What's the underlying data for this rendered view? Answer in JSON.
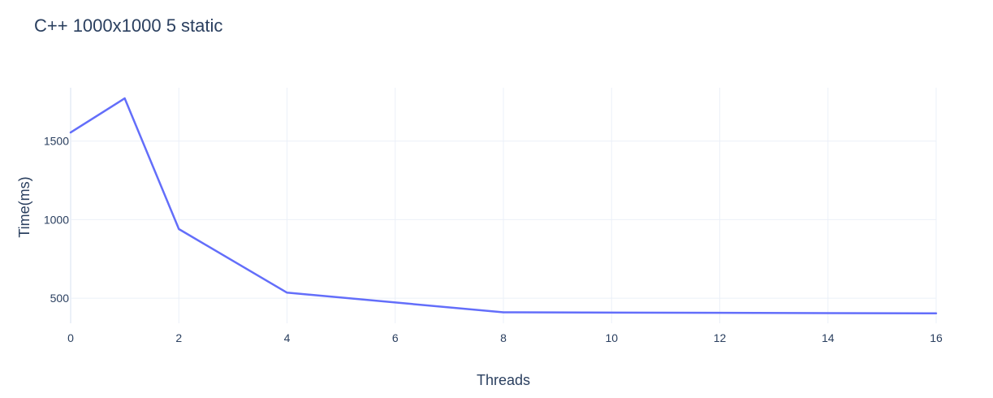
{
  "chart_data": {
    "type": "line",
    "title": "C++ 1000x1000 5 static",
    "xlabel": "Threads",
    "ylabel": "Time(ms)",
    "xlim": [
      0,
      16
    ],
    "ylim": [
      340,
      1840
    ],
    "x_ticks": [
      0,
      2,
      4,
      6,
      8,
      10,
      12,
      14,
      16
    ],
    "y_ticks": [
      500,
      1000,
      1500
    ],
    "grid": true,
    "series": [
      {
        "color": "#636efa",
        "x": [
          0,
          1,
          2,
          4,
          8,
          16
        ],
        "y": [
          1555,
          1772,
          940,
          535,
          410,
          403
        ]
      }
    ]
  }
}
